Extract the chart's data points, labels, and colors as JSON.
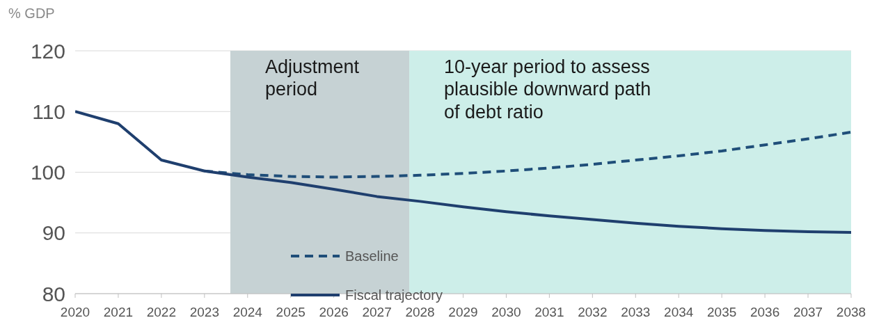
{
  "chart_data": {
    "type": "line",
    "ylabel": "% GDP",
    "x": [
      2020,
      2021,
      2022,
      2023,
      2024,
      2025,
      2026,
      2027,
      2028,
      2029,
      2030,
      2031,
      2032,
      2033,
      2034,
      2035,
      2036,
      2037,
      2038
    ],
    "series": [
      {
        "name": "Baseline",
        "color": "#1f4e79",
        "line_style": "dashed",
        "values": [
          null,
          null,
          null,
          100.2,
          99.6,
          99.3,
          99.2,
          99.3,
          99.5,
          99.8,
          100.2,
          100.7,
          101.3,
          102.0,
          102.7,
          103.5,
          104.5,
          105.5,
          106.6
        ]
      },
      {
        "name": "Fiscal trajectory",
        "color": "#1f3f6e",
        "line_style": "solid",
        "values": [
          110,
          108,
          102,
          100.2,
          99.2,
          98.3,
          97.2,
          96.0,
          95.2,
          94.3,
          93.5,
          92.8,
          92.2,
          91.6,
          91.1,
          90.7,
          90.4,
          90.2,
          90.1
        ]
      }
    ],
    "xlim": [
      2020,
      2038
    ],
    "xticks": [
      2020,
      2021,
      2022,
      2023,
      2024,
      2025,
      2026,
      2027,
      2028,
      2029,
      2030,
      2031,
      2032,
      2033,
      2034,
      2035,
      2036,
      2037,
      2038
    ],
    "ylim": [
      80,
      120
    ],
    "yticks": [
      80,
      90,
      100,
      110,
      120
    ],
    "bands": [
      {
        "axis": "x",
        "from": 2023.6,
        "to": 2027.75,
        "label": "Adjustment period",
        "color": "#c6d2d4"
      },
      {
        "axis": "x",
        "from": 2027.75,
        "to": 2038,
        "label": "10-year period to assess plausible downward path of debt ratio",
        "color": "#cdeee9"
      }
    ],
    "grid": "y",
    "legend": "bottom left",
    "marker": "none"
  }
}
